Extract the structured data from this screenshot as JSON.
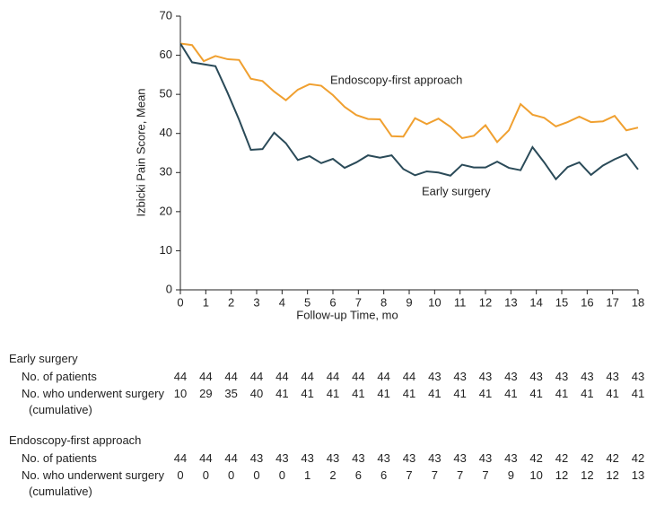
{
  "chart_data": {
    "type": "line",
    "x_label": "Follow-up Time, mo",
    "y_label": "Izbicki Pain Score, Mean",
    "x": [
      0,
      0.46,
      0.92,
      1.38,
      1.85,
      2.31,
      2.77,
      3.23,
      3.69,
      4.15,
      4.62,
      5.08,
      5.54,
      6.0,
      6.46,
      6.92,
      7.38,
      7.85,
      8.31,
      8.77,
      9.23,
      9.69,
      10.15,
      10.62,
      11.08,
      11.54,
      12.0,
      12.46,
      12.92,
      13.38,
      13.85,
      14.31,
      14.77,
      15.23,
      15.69,
      16.15,
      16.62,
      17.08,
      17.54,
      18.0
    ],
    "series": [
      {
        "name": "Endoscopy-first approach",
        "color": "#f0a030",
        "values": [
          63,
          62.6,
          58.5,
          59.8,
          59,
          58.8,
          54,
          53.4,
          50.7,
          48.5,
          51.2,
          52.6,
          52.2,
          49.8,
          46.8,
          44.7,
          43.7,
          43.6,
          39.3,
          39.2,
          43.9,
          42.4,
          43.8,
          41.7,
          38.8,
          39.4,
          42.1,
          37.8,
          40.8,
          47.5,
          44.8,
          44,
          41.8,
          42.9,
          44.3,
          42.9,
          43.1,
          44.5,
          40.8,
          41.5
        ]
      },
      {
        "name": "Early surgery",
        "color": "#2a4a58",
        "values": [
          63,
          58.2,
          57.7,
          57.2,
          50.5,
          43.5,
          35.8,
          36,
          40.2,
          37.5,
          33.2,
          34.2,
          32.4,
          33.5,
          31.2,
          32.6,
          34.4,
          33.8,
          34.4,
          30.9,
          29.3,
          30.3,
          30,
          29.2,
          32,
          31.3,
          31.3,
          32.8,
          31.2,
          30.6,
          36.5,
          32.6,
          28.3,
          31.4,
          32.6,
          29.4,
          31.8,
          33.4,
          34.7,
          30.8
        ]
      }
    ],
    "xlim": [
      0,
      18
    ],
    "xticks": [
      0,
      1,
      2,
      3,
      4,
      5,
      6,
      7,
      8,
      9,
      10,
      11,
      12,
      13,
      14,
      15,
      16,
      17,
      18
    ],
    "ylim": [
      0,
      70
    ],
    "yticks": [
      0,
      10,
      20,
      30,
      40,
      50,
      60,
      70
    ],
    "grid": false
  },
  "risk_table": {
    "groups": [
      {
        "name": "Early surgery",
        "rows": [
          {
            "label": "No. of patients",
            "values": [
              44,
              44,
              44,
              44,
              44,
              44,
              44,
              44,
              44,
              44,
              43,
              43,
              43,
              43,
              43,
              43,
              43,
              43,
              43
            ]
          },
          {
            "label": "No. who underwent surgery (cumulative)",
            "values": [
              10,
              29,
              35,
              40,
              41,
              41,
              41,
              41,
              41,
              41,
              41,
              41,
              41,
              41,
              41,
              41,
              41,
              41,
              41
            ]
          }
        ]
      },
      {
        "name": "Endoscopy-first approach",
        "rows": [
          {
            "label": "No. of patients",
            "values": [
              44,
              44,
              44,
              43,
              43,
              43,
              43,
              43,
              43,
              43,
              43,
              43,
              43,
              43,
              42,
              42,
              42,
              42,
              42
            ]
          },
          {
            "label": "No. who underwent surgery (cumulative)",
            "values": [
              0,
              0,
              0,
              0,
              0,
              1,
              2,
              6,
              6,
              7,
              7,
              7,
              7,
              9,
              10,
              12,
              12,
              12,
              13
            ]
          }
        ]
      }
    ]
  }
}
